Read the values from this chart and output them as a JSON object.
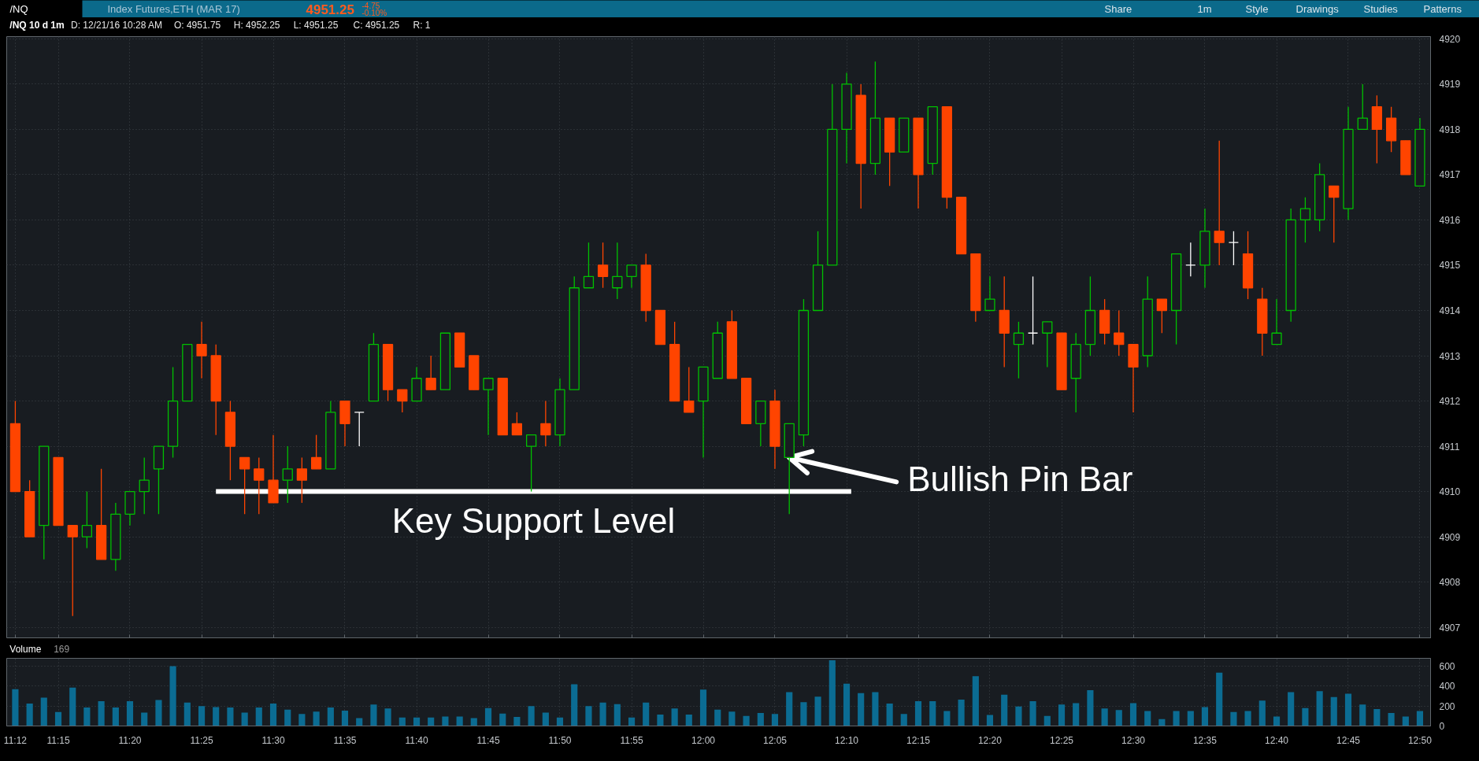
{
  "chart_data": [
    {
      "type": "candlestick",
      "title": "/NQ 10 d 1m",
      "annotations": [
        "/NQ",
        "Index Futures,ETH (MAR 17)",
        "4951.25",
        "-4.75",
        "-0.10%",
        "Share",
        "1m",
        "Style",
        "Drawings",
        "Studies",
        "Patterns",
        "D: 12/21/16 10:28 AM",
        "O: 4951.75",
        "H: 4952.25",
        "L: 4951.25",
        "C: 4951.25",
        "R: 1",
        {
          "text": "Bullish Pin Bar",
          "x": 12.1,
          "y": 4910.75
        }
      ],
      "x": [
        11.2,
        11.2167,
        11.2333,
        11.25,
        11.2667,
        11.2833,
        11.3,
        11.3167,
        11.3333,
        11.35,
        11.3667,
        11.3833,
        11.4,
        11.4167,
        11.4333,
        11.45,
        11.4667,
        11.4833,
        11.5,
        11.5167,
        11.5333,
        11.55,
        11.5667,
        11.5833,
        11.6,
        11.6167,
        11.6333,
        11.65,
        11.6667,
        11.6833,
        11.7,
        11.7167,
        11.7333,
        11.75,
        11.7667,
        11.7833,
        11.8,
        11.8167,
        11.8333,
        11.85,
        11.8667,
        11.8833,
        11.9,
        11.9167,
        11.9333,
        11.95,
        11.9667,
        11.9833,
        12.0,
        12.0167,
        12.0333,
        12.05,
        12.0667,
        12.0833,
        12.1,
        12.1167,
        12.1333,
        12.15,
        12.1667,
        12.1833,
        12.2,
        12.2167,
        12.2333,
        12.25,
        12.2667,
        12.2833,
        12.3,
        12.3167,
        12.3333,
        12.35,
        12.3667,
        12.3833,
        12.4,
        12.4167,
        12.4333,
        12.45,
        12.4667,
        12.4833,
        12.5,
        12.5167,
        12.5333,
        12.55,
        12.5667,
        12.5833,
        12.6,
        12.6167,
        12.6333,
        12.65,
        12.6667,
        12.6833,
        12.7,
        12.7167,
        12.7333,
        12.75,
        12.7667,
        12.7833,
        12.8,
        12.8167,
        12.8333
      ],
      "ohlc": [
        [
          4911.5,
          4912,
          4910,
          4910
        ],
        [
          4910,
          4910.25,
          4909,
          4909
        ],
        [
          4909.25,
          4911,
          4908.5,
          4911
        ],
        [
          4910.75,
          4910.75,
          4909.25,
          4909.25
        ],
        [
          4909.25,
          4909.25,
          4907.25,
          4909
        ],
        [
          4909,
          4910,
          4908.75,
          4909.25
        ],
        [
          4909.25,
          4910.5,
          4908.5,
          4908.5
        ],
        [
          4908.5,
          4909.75,
          4908.25,
          4909.5
        ],
        [
          4909.5,
          4910,
          4909.25,
          4910
        ],
        [
          4910,
          4910.75,
          4909.5,
          4910.25
        ],
        [
          4910.5,
          4911,
          4909.5,
          4911
        ],
        [
          4911,
          4912.75,
          4910.75,
          4912
        ],
        [
          4912,
          4913.25,
          4912,
          4913.25
        ],
        [
          4913.25,
          4913.75,
          4912.5,
          4913
        ],
        [
          4913,
          4913.25,
          4911.25,
          4912
        ],
        [
          4911.75,
          4912,
          4910.25,
          4911
        ],
        [
          4910.75,
          4910.75,
          4909.5,
          4910.5
        ],
        [
          4910.5,
          4910.75,
          4909.5,
          4910.25
        ],
        [
          4910.25,
          4911.25,
          4909.75,
          4909.75
        ],
        [
          4910.25,
          4911,
          4909.75,
          4910.5
        ],
        [
          4910.5,
          4910.75,
          4909.75,
          4910.25
        ],
        [
          4910.75,
          4911.25,
          4910.5,
          4910.5
        ],
        [
          4910.5,
          4912,
          4910.5,
          4911.75
        ],
        [
          4912,
          4912,
          4911,
          4911.5
        ],
        [
          4911.75,
          4911.75,
          4911,
          4911.75
        ],
        [
          4912,
          4913.5,
          4912,
          4913.25
        ],
        [
          4913.25,
          4913.25,
          4912,
          4912.25
        ],
        [
          4912.25,
          4912.25,
          4911.75,
          4912
        ],
        [
          4912,
          4912.75,
          4912,
          4912.5
        ],
        [
          4912.5,
          4913,
          4912.25,
          4912.25
        ],
        [
          4912.25,
          4913.5,
          4912.25,
          4913.5
        ],
        [
          4913.5,
          4913.5,
          4912.75,
          4912.75
        ],
        [
          4913,
          4913,
          4912.25,
          4912.25
        ],
        [
          4912.25,
          4912.5,
          4911.25,
          4912.5
        ],
        [
          4912.5,
          4912.5,
          4911.25,
          4911.25
        ],
        [
          4911.5,
          4911.75,
          4911.25,
          4911.25
        ],
        [
          4911,
          4911.25,
          4910,
          4911.25
        ],
        [
          4911.5,
          4912,
          4911,
          4911.25
        ],
        [
          4911.25,
          4912.5,
          4911,
          4912.25
        ],
        [
          4912.25,
          4914.75,
          4912.25,
          4914.5
        ],
        [
          4914.5,
          4915.5,
          4914.5,
          4914.75
        ],
        [
          4915,
          4915.5,
          4914.5,
          4914.75
        ],
        [
          4914.5,
          4915.5,
          4914.25,
          4914.75
        ],
        [
          4914.75,
          4915,
          4914.5,
          4915
        ],
        [
          4915,
          4915.25,
          4913.75,
          4914
        ],
        [
          4914,
          4914,
          4913.25,
          4913.25
        ],
        [
          4913.25,
          4913.75,
          4912,
          4912
        ],
        [
          4912,
          4912.75,
          4911.75,
          4911.75
        ],
        [
          4912,
          4912.75,
          4910.75,
          4912.75
        ],
        [
          4912.5,
          4913.75,
          4912.5,
          4913.5
        ],
        [
          4913.75,
          4914,
          4912.5,
          4912.5
        ],
        [
          4912.5,
          4912.5,
          4911.5,
          4911.5
        ],
        [
          4911.5,
          4912,
          4911,
          4912
        ],
        [
          4912,
          4912.25,
          4910.5,
          4911
        ],
        [
          4910.75,
          4911.5,
          4909.5,
          4911.5
        ],
        [
          4911.25,
          4914.25,
          4911,
          4914
        ],
        [
          4914,
          4915.75,
          4914,
          4915
        ],
        [
          4915,
          4919,
          4915,
          4918
        ],
        [
          4918,
          4919.25,
          4917.25,
          4919
        ],
        [
          4918.75,
          4919,
          4916.25,
          4917.25
        ],
        [
          4917.25,
          4919.5,
          4917,
          4918.25
        ],
        [
          4918.25,
          4918.25,
          4916.75,
          4917.5
        ],
        [
          4917.5,
          4918.25,
          4917.5,
          4918.25
        ],
        [
          4918.25,
          4918.25,
          4916.25,
          4917
        ],
        [
          4917.25,
          4918.5,
          4917,
          4918.5
        ],
        [
          4918.5,
          4918.5,
          4916.25,
          4916.5
        ],
        [
          4916.5,
          4916.5,
          4915.25,
          4915.25
        ],
        [
          4915.25,
          4915.25,
          4913.75,
          4914
        ],
        [
          4914,
          4914.75,
          4914,
          4914.25
        ],
        [
          4914,
          4914.75,
          4912.75,
          4913.5
        ],
        [
          4913.25,
          4913.75,
          4912.5,
          4913.5
        ],
        [
          4913.5,
          4914.75,
          4913.25,
          4913.5
        ],
        [
          4913.5,
          4913.75,
          4912.75,
          4913.75
        ],
        [
          4913.5,
          4913.5,
          4912.25,
          4912.25
        ],
        [
          4912.5,
          4913.5,
          4911.75,
          4913.25
        ],
        [
          4913.25,
          4914.75,
          4913,
          4914
        ],
        [
          4914,
          4914.25,
          4913.25,
          4913.5
        ],
        [
          4913.5,
          4914,
          4913,
          4913.25
        ],
        [
          4913.25,
          4913.25,
          4911.75,
          4912.75
        ],
        [
          4913,
          4914.75,
          4912.75,
          4914.25
        ],
        [
          4914.25,
          4914.25,
          4913.5,
          4914
        ],
        [
          4914,
          4915.25,
          4913.25,
          4915.25
        ],
        [
          4915,
          4915.5,
          4914.75,
          4915
        ],
        [
          4915,
          4916.25,
          4914.5,
          4915.75
        ],
        [
          4915.75,
          4917.75,
          4915,
          4915.5
        ],
        [
          4915.5,
          4915.75,
          4915,
          4915.5
        ],
        [
          4915.25,
          4915.75,
          4914.25,
          4914.5
        ],
        [
          4914.25,
          4914.5,
          4913,
          4913.5
        ],
        [
          4913.25,
          4914.25,
          4913.25,
          4913.5
        ],
        [
          4914,
          4916.25,
          4913.75,
          4916
        ],
        [
          4916,
          4916.5,
          4915.5,
          4916.25
        ],
        [
          4916,
          4917.25,
          4915.75,
          4917
        ],
        [
          4916.75,
          4916.75,
          4915.5,
          4916.5
        ],
        [
          4916.25,
          4918.5,
          4916,
          4918
        ],
        [
          4918,
          4919,
          4918,
          4918.25
        ],
        [
          4918.5,
          4918.75,
          4917.25,
          4918
        ],
        [
          4918.25,
          4918.5,
          4917.5,
          4917.75
        ],
        [
          4917.75,
          4917.75,
          4917,
          4917
        ],
        [
          4916.75,
          4918.25,
          4916.75,
          4918
        ]
      ],
      "colors": [
        "#ff4400",
        "#ff4400",
        "#00c000",
        "#ff4400",
        "#ff4400",
        "#00c000",
        "#ff4400",
        "#00c000",
        "#00c000",
        "#00c000",
        "#00c000",
        "#00c000",
        "#00c000",
        "#ff4400",
        "#ff4400",
        "#ff4400",
        "#ff4400",
        "#ff4400",
        "#ff4400",
        "#00c000",
        "#ff4400",
        "#ff4400",
        "#00c000",
        "#ff4400",
        "#ffffff",
        "#00c000",
        "#ff4400",
        "#ff4400",
        "#00c000",
        "#ff4400",
        "#00c000",
        "#ff4400",
        "#ff4400",
        "#00c000",
        "#ff4400",
        "#ff4400",
        "#00c000",
        "#ff4400",
        "#00c000",
        "#00c000",
        "#00c000",
        "#ff4400",
        "#00c000",
        "#00c000",
        "#ff4400",
        "#ff4400",
        "#ff4400",
        "#ff4400",
        "#00c000",
        "#00c000",
        "#ff4400",
        "#ff4400",
        "#00c000",
        "#ff4400",
        "#00c000",
        "#00c000",
        "#00c000",
        "#00c000",
        "#00c000",
        "#ff4400",
        "#00c000",
        "#ff4400",
        "#00c000",
        "#ff4400",
        "#00c000",
        "#ff4400",
        "#ff4400",
        "#ff4400",
        "#00c000",
        "#ff4400",
        "#00c000",
        "#ffffff",
        "#00c000",
        "#ff4400",
        "#00c000",
        "#00c000",
        "#ff4400",
        "#ff4400",
        "#ff4400",
        "#00c000",
        "#ff4400",
        "#00c000",
        "#ffffff",
        "#00c000",
        "#ff4400",
        "#ffffff",
        "#ff4400",
        "#ff4400",
        "#00c000",
        "#00c000",
        "#00c000",
        "#00c000",
        "#ff4400",
        "#00c000",
        "#00c000",
        "#ff4400",
        "#ff4400",
        "#ff4400",
        "#00c000"
      ],
      "series": [
        {
          "type": "line",
          "name": "Key Support Level",
          "color": "#ffffff",
          "x": [
            11.4333,
            12.172
          ],
          "values": [
            4910,
            4910
          ]
        }
      ],
      "xlim": [
        11.19,
        12.8457
      ],
      "ylim": [
        4906.75,
        4920.05
      ],
      "xticks": [
        {
          "value": 11.2,
          "label": null
        },
        {
          "value": 11.25,
          "label": null
        },
        {
          "value": 11.3333,
          "label": null
        },
        {
          "value": 11.4167,
          "label": null
        },
        {
          "value": 11.5,
          "label": null
        },
        {
          "value": 11.5833,
          "label": null
        },
        {
          "value": 11.6667,
          "label": null
        },
        {
          "value": 11.75,
          "label": null
        },
        {
          "value": 11.8333,
          "label": null
        },
        {
          "value": 11.9167,
          "label": null
        },
        {
          "value": 12.0,
          "label": null
        },
        {
          "value": 12.0833,
          "label": null
        },
        {
          "value": 12.1667,
          "label": null
        },
        {
          "value": 12.25,
          "label": null
        },
        {
          "value": 12.3333,
          "label": null
        },
        {
          "value": 12.4167,
          "label": null
        },
        {
          "value": 12.5,
          "label": null
        },
        {
          "value": 12.5833,
          "label": null
        },
        {
          "value": 12.6667,
          "label": null
        },
        {
          "value": 12.75,
          "label": null
        },
        {
          "value": 12.8333,
          "label": null
        }
      ],
      "yticks": [
        4907,
        4908,
        4909,
        4910,
        4911,
        4912,
        4913,
        4914,
        4915,
        4916,
        4917,
        4918,
        4919,
        4920
      ],
      "grid": true,
      "tick_labels": "y"
    },
    {
      "type": "bar",
      "title": "Volume",
      "annotations": [
        "169"
      ],
      "x": [
        11.2,
        11.2167,
        11.2333,
        11.25,
        11.2667,
        11.2833,
        11.3,
        11.3167,
        11.3333,
        11.35,
        11.3667,
        11.3833,
        11.4,
        11.4167,
        11.4333,
        11.45,
        11.4667,
        11.4833,
        11.5,
        11.5167,
        11.5333,
        11.55,
        11.5667,
        11.5833,
        11.6,
        11.6167,
        11.6333,
        11.65,
        11.6667,
        11.6833,
        11.7,
        11.7167,
        11.7333,
        11.75,
        11.7667,
        11.7833,
        11.8,
        11.8167,
        11.8333,
        11.85,
        11.8667,
        11.8833,
        11.9,
        11.9167,
        11.9333,
        11.95,
        11.9667,
        11.9833,
        12.0,
        12.0167,
        12.0333,
        12.05,
        12.0667,
        12.0833,
        12.1,
        12.1167,
        12.1333,
        12.15,
        12.1667,
        12.1833,
        12.2,
        12.2167,
        12.2333,
        12.25,
        12.2667,
        12.2833,
        12.3,
        12.3167,
        12.3333,
        12.35,
        12.3667,
        12.3833,
        12.4,
        12.4167,
        12.4333,
        12.45,
        12.4667,
        12.4833,
        12.5,
        12.5167,
        12.5333,
        12.55,
        12.5667,
        12.5833,
        12.6,
        12.6167,
        12.6333,
        12.65,
        12.6667,
        12.6833,
        12.7,
        12.7167,
        12.7333,
        12.75,
        12.7667,
        12.7833,
        12.8,
        12.8167,
        12.8333
      ],
      "values": [
        370,
        225,
        285,
        140,
        385,
        185,
        250,
        185,
        250,
        135,
        260,
        600,
        235,
        200,
        190,
        185,
        135,
        185,
        225,
        165,
        120,
        145,
        185,
        155,
        80,
        215,
        175,
        85,
        85,
        85,
        95,
        95,
        80,
        180,
        125,
        90,
        200,
        135,
        85,
        420,
        200,
        235,
        220,
        85,
        235,
        115,
        175,
        115,
        365,
        165,
        145,
        100,
        130,
        120,
        340,
        240,
        295,
        660,
        425,
        330,
        340,
        225,
        120,
        250,
        250,
        150,
        265,
        500,
        110,
        315,
        195,
        250,
        100,
        215,
        230,
        360,
        175,
        160,
        230,
        150,
        70,
        150,
        150,
        190,
        535,
        140,
        150,
        255,
        95,
        340,
        180,
        350,
        290,
        325,
        215,
        170,
        130,
        95,
        150
      ],
      "color": "#0b6c93",
      "xlim": [
        11.19,
        12.8457
      ],
      "ylim": [
        0,
        680
      ],
      "xticks": [
        {
          "value": 11.2,
          "label": "11:12"
        },
        {
          "value": 11.25,
          "label": "11:15"
        },
        {
          "value": 11.3333,
          "label": "11:20"
        },
        {
          "value": 11.4167,
          "label": "11:25"
        },
        {
          "value": 11.5,
          "label": "11:30"
        },
        {
          "value": 11.5833,
          "label": "11:35"
        },
        {
          "value": 11.6667,
          "label": "11:40"
        },
        {
          "value": 11.75,
          "label": "11:45"
        },
        {
          "value": 11.8333,
          "label": "11:50"
        },
        {
          "value": 11.9167,
          "label": "11:55"
        },
        {
          "value": 12.0,
          "label": "12:00"
        },
        {
          "value": 12.0833,
          "label": "12:05"
        },
        {
          "value": 12.1667,
          "label": "12:10"
        },
        {
          "value": 12.25,
          "label": "12:15"
        },
        {
          "value": 12.3333,
          "label": "12:20"
        },
        {
          "value": 12.4167,
          "label": "12:25"
        },
        {
          "value": 12.5,
          "label": "12:30"
        },
        {
          "value": 12.5833,
          "label": "12:35"
        },
        {
          "value": 12.6667,
          "label": "12:40"
        },
        {
          "value": 12.75,
          "label": "12:45"
        },
        {
          "value": 12.8333,
          "label": "12:50"
        }
      ],
      "yticks": [
        0,
        200,
        400,
        600
      ],
      "grid": true
    }
  ]
}
